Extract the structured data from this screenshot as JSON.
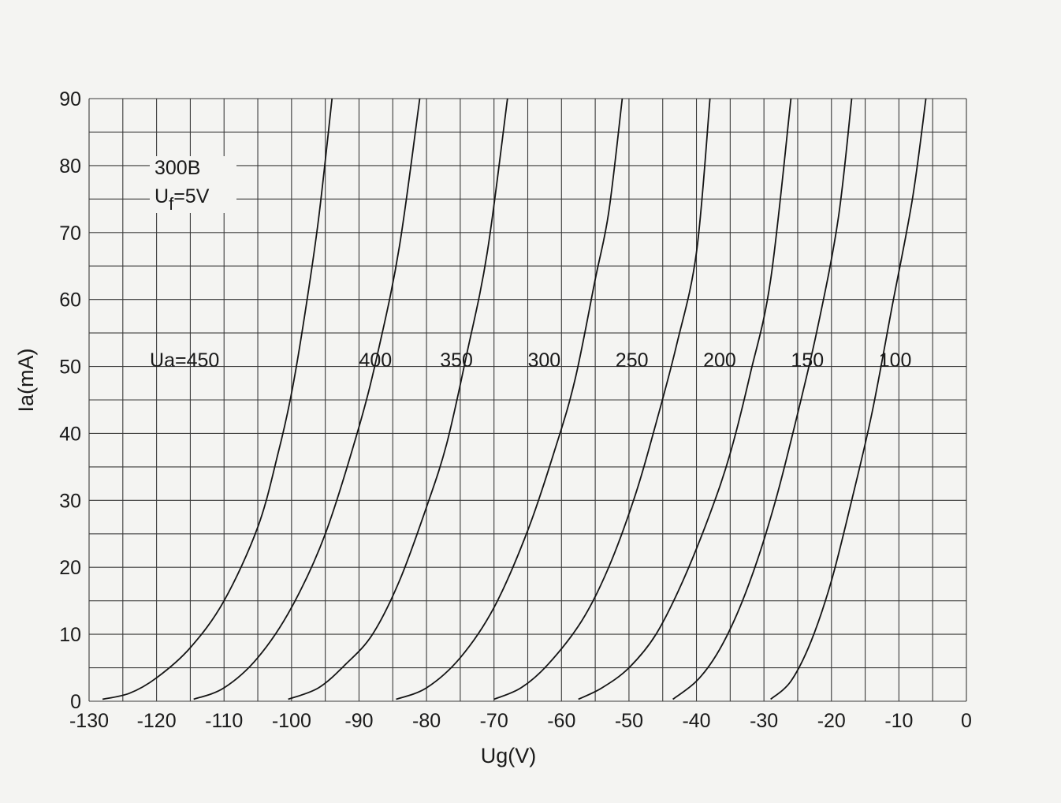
{
  "chart_data": {
    "type": "line",
    "title": "",
    "xlabel": "Ug(V)",
    "ylabel": "Ia(mA)",
    "xlim": [
      -130,
      0
    ],
    "ylim": [
      0,
      90
    ],
    "x_ticks": [
      "-130",
      "-120",
      "-110",
      "-100",
      "-90",
      "-80",
      "-70",
      "-60",
      "-50",
      "-40",
      "-30",
      "-20",
      "-10",
      "0"
    ],
    "y_ticks": [
      "0",
      "10",
      "20",
      "30",
      "40",
      "50",
      "60",
      "70",
      "80",
      "90"
    ],
    "grid": true,
    "annotation": {
      "tube": "300B",
      "filament_main": "U",
      "filament_sub": "f",
      "filament_rest": "=5V"
    },
    "series": [
      {
        "name": "Ua=450",
        "label": "Ua=450",
        "points": [
          [
            -128,
            0.3
          ],
          [
            -124,
            1.2
          ],
          [
            -120,
            3.5
          ],
          [
            -115,
            8.0
          ],
          [
            -110,
            15.0
          ],
          [
            -105,
            26.0
          ],
          [
            -102,
            37.0
          ],
          [
            -100,
            46.0
          ],
          [
            -98,
            58.0
          ],
          [
            -96,
            72.0
          ],
          [
            -94,
            90.0
          ]
        ]
      },
      {
        "name": "400",
        "label": "400",
        "points": [
          [
            -114.5,
            0.3
          ],
          [
            -110,
            2.0
          ],
          [
            -105,
            6.5
          ],
          [
            -100,
            14.0
          ],
          [
            -95,
            25.0
          ],
          [
            -90,
            41.0
          ],
          [
            -87,
            53.0
          ],
          [
            -84,
            68.0
          ],
          [
            -81,
            90.0
          ]
        ]
      },
      {
        "name": "350",
        "label": "350",
        "points": [
          [
            -100.5,
            0.3
          ],
          [
            -96,
            2.0
          ],
          [
            -92,
            5.5
          ],
          [
            -88,
            10.0
          ],
          [
            -84,
            18.0
          ],
          [
            -80,
            29.0
          ],
          [
            -77,
            38.5
          ],
          [
            -74,
            52.0
          ],
          [
            -71,
            67.0
          ],
          [
            -68,
            90.0
          ]
        ]
      },
      {
        "name": "300",
        "label": "300",
        "points": [
          [
            -84.5,
            0.3
          ],
          [
            -80,
            2.0
          ],
          [
            -75,
            6.5
          ],
          [
            -70,
            14.0
          ],
          [
            -65,
            25.5
          ],
          [
            -61,
            37.5
          ],
          [
            -58,
            48.0
          ],
          [
            -55,
            63.0
          ],
          [
            -53,
            73.0
          ],
          [
            -51,
            90.0
          ]
        ]
      },
      {
        "name": "250",
        "label": "250",
        "points": [
          [
            -70,
            0.3
          ],
          [
            -66,
            2.0
          ],
          [
            -62,
            5.5
          ],
          [
            -57,
            12.0
          ],
          [
            -53,
            20.0
          ],
          [
            -49,
            31.0
          ],
          [
            -46,
            41.5
          ],
          [
            -43,
            53.0
          ],
          [
            -40,
            67.0
          ],
          [
            -38,
            90.0
          ]
        ]
      },
      {
        "name": "200",
        "label": "200",
        "points": [
          [
            -57.5,
            0.3
          ],
          [
            -54,
            2.0
          ],
          [
            -50,
            5.0
          ],
          [
            -46,
            10.0
          ],
          [
            -42,
            18.0
          ],
          [
            -38,
            28.0
          ],
          [
            -35,
            37.0
          ],
          [
            -32,
            49.0
          ],
          [
            -29,
            63.0
          ],
          [
            -26,
            90.0
          ]
        ]
      },
      {
        "name": "150",
        "label": "150",
        "points": [
          [
            -43.5,
            0.3
          ],
          [
            -40,
            3.0
          ],
          [
            -37,
            7.0
          ],
          [
            -34,
            13.0
          ],
          [
            -31,
            21.0
          ],
          [
            -28,
            31.0
          ],
          [
            -25,
            43.0
          ],
          [
            -22,
            56.0
          ],
          [
            -19,
            72.0
          ],
          [
            -17,
            90.0
          ]
        ]
      },
      {
        "name": "100",
        "label": "100",
        "points": [
          [
            -29,
            0.3
          ],
          [
            -26,
            3.0
          ],
          [
            -23,
            9.0
          ],
          [
            -20,
            18.0
          ],
          [
            -17,
            30.0
          ],
          [
            -14,
            43.0
          ],
          [
            -11,
            59.0
          ],
          [
            -8,
            75.0
          ],
          [
            -6,
            90.0
          ]
        ]
      }
    ],
    "series_label_positions_data": [
      [
        -121,
        51
      ],
      [
        -90,
        51
      ],
      [
        -78,
        51
      ],
      [
        -65,
        51
      ],
      [
        -52,
        51
      ],
      [
        -39,
        51
      ],
      [
        -26,
        51
      ],
      [
        -13,
        51
      ]
    ]
  }
}
